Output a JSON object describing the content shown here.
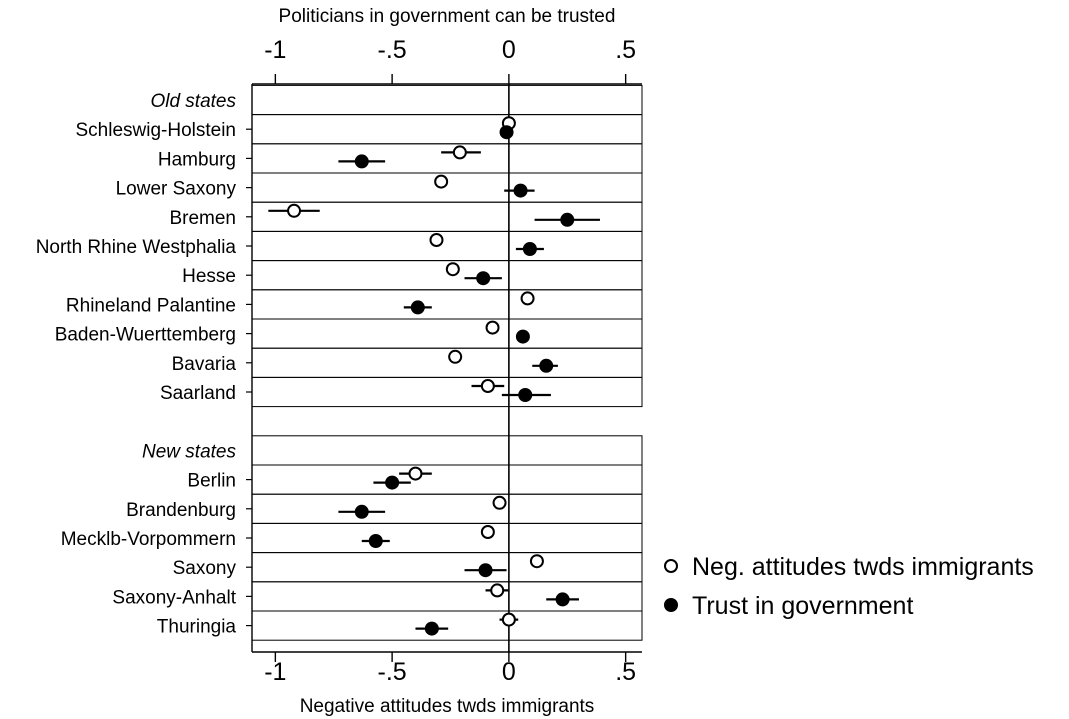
{
  "chart_data": {
    "type": "scatter",
    "top_axis": {
      "title": "Politicians in government can be trusted",
      "ticks": [
        -1,
        -0.5,
        0,
        0.5
      ],
      "tick_labels": [
        "-1",
        "-.5",
        "0",
        ".5"
      ]
    },
    "bottom_axis": {
      "title": "Negative attitudes twds immigrants",
      "ticks": [
        -1,
        -0.5,
        0,
        0.5
      ],
      "tick_labels": [
        "-1",
        "-.5",
        "0",
        ".5"
      ]
    },
    "xlim": [
      -1.1,
      0.57
    ],
    "reference_line_x": 0,
    "legend": {
      "position": "right",
      "entries": [
        {
          "label": "Neg. attitudes twds immigrants",
          "marker": "hollow-circle"
        },
        {
          "label": "Trust in government",
          "marker": "filled-circle"
        }
      ]
    },
    "series": [
      {
        "name": "Neg. attitudes twds immigrants",
        "marker": "hollow-circle"
      },
      {
        "name": "Trust in government",
        "marker": "filled-circle"
      }
    ],
    "sections": [
      {
        "label": "Old states",
        "rows": [
          {
            "label": "Schleswig-Holstein",
            "neg": {
              "v": 0.0,
              "lo": null,
              "hi": null
            },
            "trust": {
              "v": -0.01,
              "lo": null,
              "hi": null
            }
          },
          {
            "label": "Hamburg",
            "neg": {
              "v": -0.21,
              "lo": -0.29,
              "hi": -0.12
            },
            "trust": {
              "v": -0.63,
              "lo": -0.73,
              "hi": -0.53
            }
          },
          {
            "label": "Lower Saxony",
            "neg": {
              "v": -0.29,
              "lo": null,
              "hi": null
            },
            "trust": {
              "v": 0.05,
              "lo": -0.02,
              "hi": 0.11
            }
          },
          {
            "label": "Bremen",
            "neg": {
              "v": -0.92,
              "lo": -1.03,
              "hi": -0.81
            },
            "trust": {
              "v": 0.25,
              "lo": 0.11,
              "hi": 0.39
            }
          },
          {
            "label": "North Rhine Westphalia",
            "neg": {
              "v": -0.31,
              "lo": null,
              "hi": null
            },
            "trust": {
              "v": 0.09,
              "lo": 0.03,
              "hi": 0.15
            }
          },
          {
            "label": "Hesse",
            "neg": {
              "v": -0.24,
              "lo": null,
              "hi": null
            },
            "trust": {
              "v": -0.11,
              "lo": -0.19,
              "hi": -0.03
            }
          },
          {
            "label": "Rhineland Palantine",
            "neg": {
              "v": 0.08,
              "lo": null,
              "hi": null
            },
            "trust": {
              "v": -0.39,
              "lo": -0.45,
              "hi": -0.33
            }
          },
          {
            "label": "Baden-Wuerttemberg",
            "neg": {
              "v": -0.07,
              "lo": null,
              "hi": null
            },
            "trust": {
              "v": 0.06,
              "lo": null,
              "hi": null
            }
          },
          {
            "label": "Bavaria",
            "neg": {
              "v": -0.23,
              "lo": null,
              "hi": null
            },
            "trust": {
              "v": 0.16,
              "lo": 0.1,
              "hi": 0.21
            }
          },
          {
            "label": "Saarland",
            "neg": {
              "v": -0.09,
              "lo": -0.16,
              "hi": -0.02
            },
            "trust": {
              "v": 0.07,
              "lo": -0.03,
              "hi": 0.18
            }
          }
        ]
      },
      {
        "label": "New states",
        "rows": [
          {
            "label": "Berlin",
            "neg": {
              "v": -0.4,
              "lo": -0.47,
              "hi": -0.33
            },
            "trust": {
              "v": -0.5,
              "lo": -0.58,
              "hi": -0.42
            }
          },
          {
            "label": "Brandenburg",
            "neg": {
              "v": -0.04,
              "lo": null,
              "hi": null
            },
            "trust": {
              "v": -0.63,
              "lo": -0.73,
              "hi": -0.53
            }
          },
          {
            "label": "Mecklb-Vorpommern",
            "neg": {
              "v": -0.09,
              "lo": null,
              "hi": null
            },
            "trust": {
              "v": -0.57,
              "lo": -0.63,
              "hi": -0.51
            }
          },
          {
            "label": "Saxony",
            "neg": {
              "v": 0.12,
              "lo": null,
              "hi": null
            },
            "trust": {
              "v": -0.1,
              "lo": -0.19,
              "hi": -0.01
            }
          },
          {
            "label": "Saxony-Anhalt",
            "neg": {
              "v": -0.05,
              "lo": -0.1,
              "hi": 0.0
            },
            "trust": {
              "v": 0.23,
              "lo": 0.16,
              "hi": 0.3
            }
          },
          {
            "label": "Thuringia",
            "neg": {
              "v": 0.0,
              "lo": -0.04,
              "hi": 0.04
            },
            "trust": {
              "v": -0.33,
              "lo": -0.4,
              "hi": -0.26
            }
          }
        ]
      }
    ]
  }
}
